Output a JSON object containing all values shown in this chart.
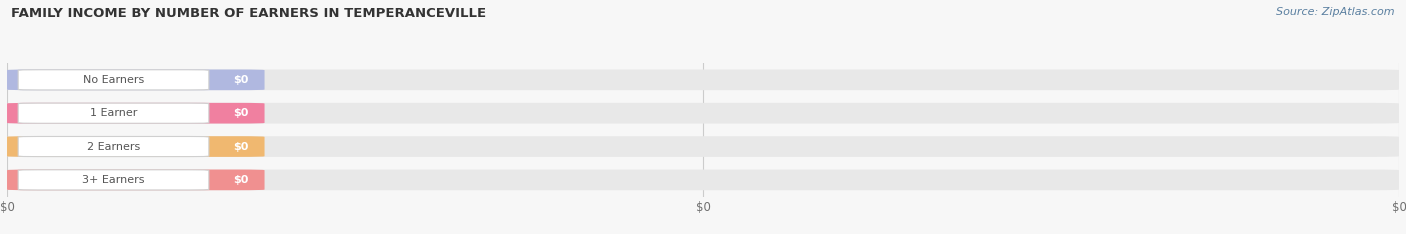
{
  "title": "FAMILY INCOME BY NUMBER OF EARNERS IN TEMPERANCEVILLE",
  "source": "Source: ZipAtlas.com",
  "categories": [
    "No Earners",
    "1 Earner",
    "2 Earners",
    "3+ Earners"
  ],
  "values": [
    0,
    0,
    0,
    0
  ],
  "bar_colors": [
    "#b0b8e0",
    "#f080a0",
    "#f0b870",
    "#f09090"
  ],
  "bar_bg_color": "#e8e8e8",
  "value_labels": [
    "$0",
    "$0",
    "$0",
    "$0"
  ],
  "x_tick_labels": [
    "$0",
    "$0",
    "$0"
  ],
  "x_tick_positions": [
    0.0,
    0.5,
    1.0
  ],
  "background_color": "#f7f7f7",
  "title_color": "#333333",
  "title_fontsize": 9.5,
  "source_fontsize": 8,
  "source_color": "#5a7fa0",
  "bar_height": 0.62,
  "figsize": [
    14.06,
    2.34
  ]
}
